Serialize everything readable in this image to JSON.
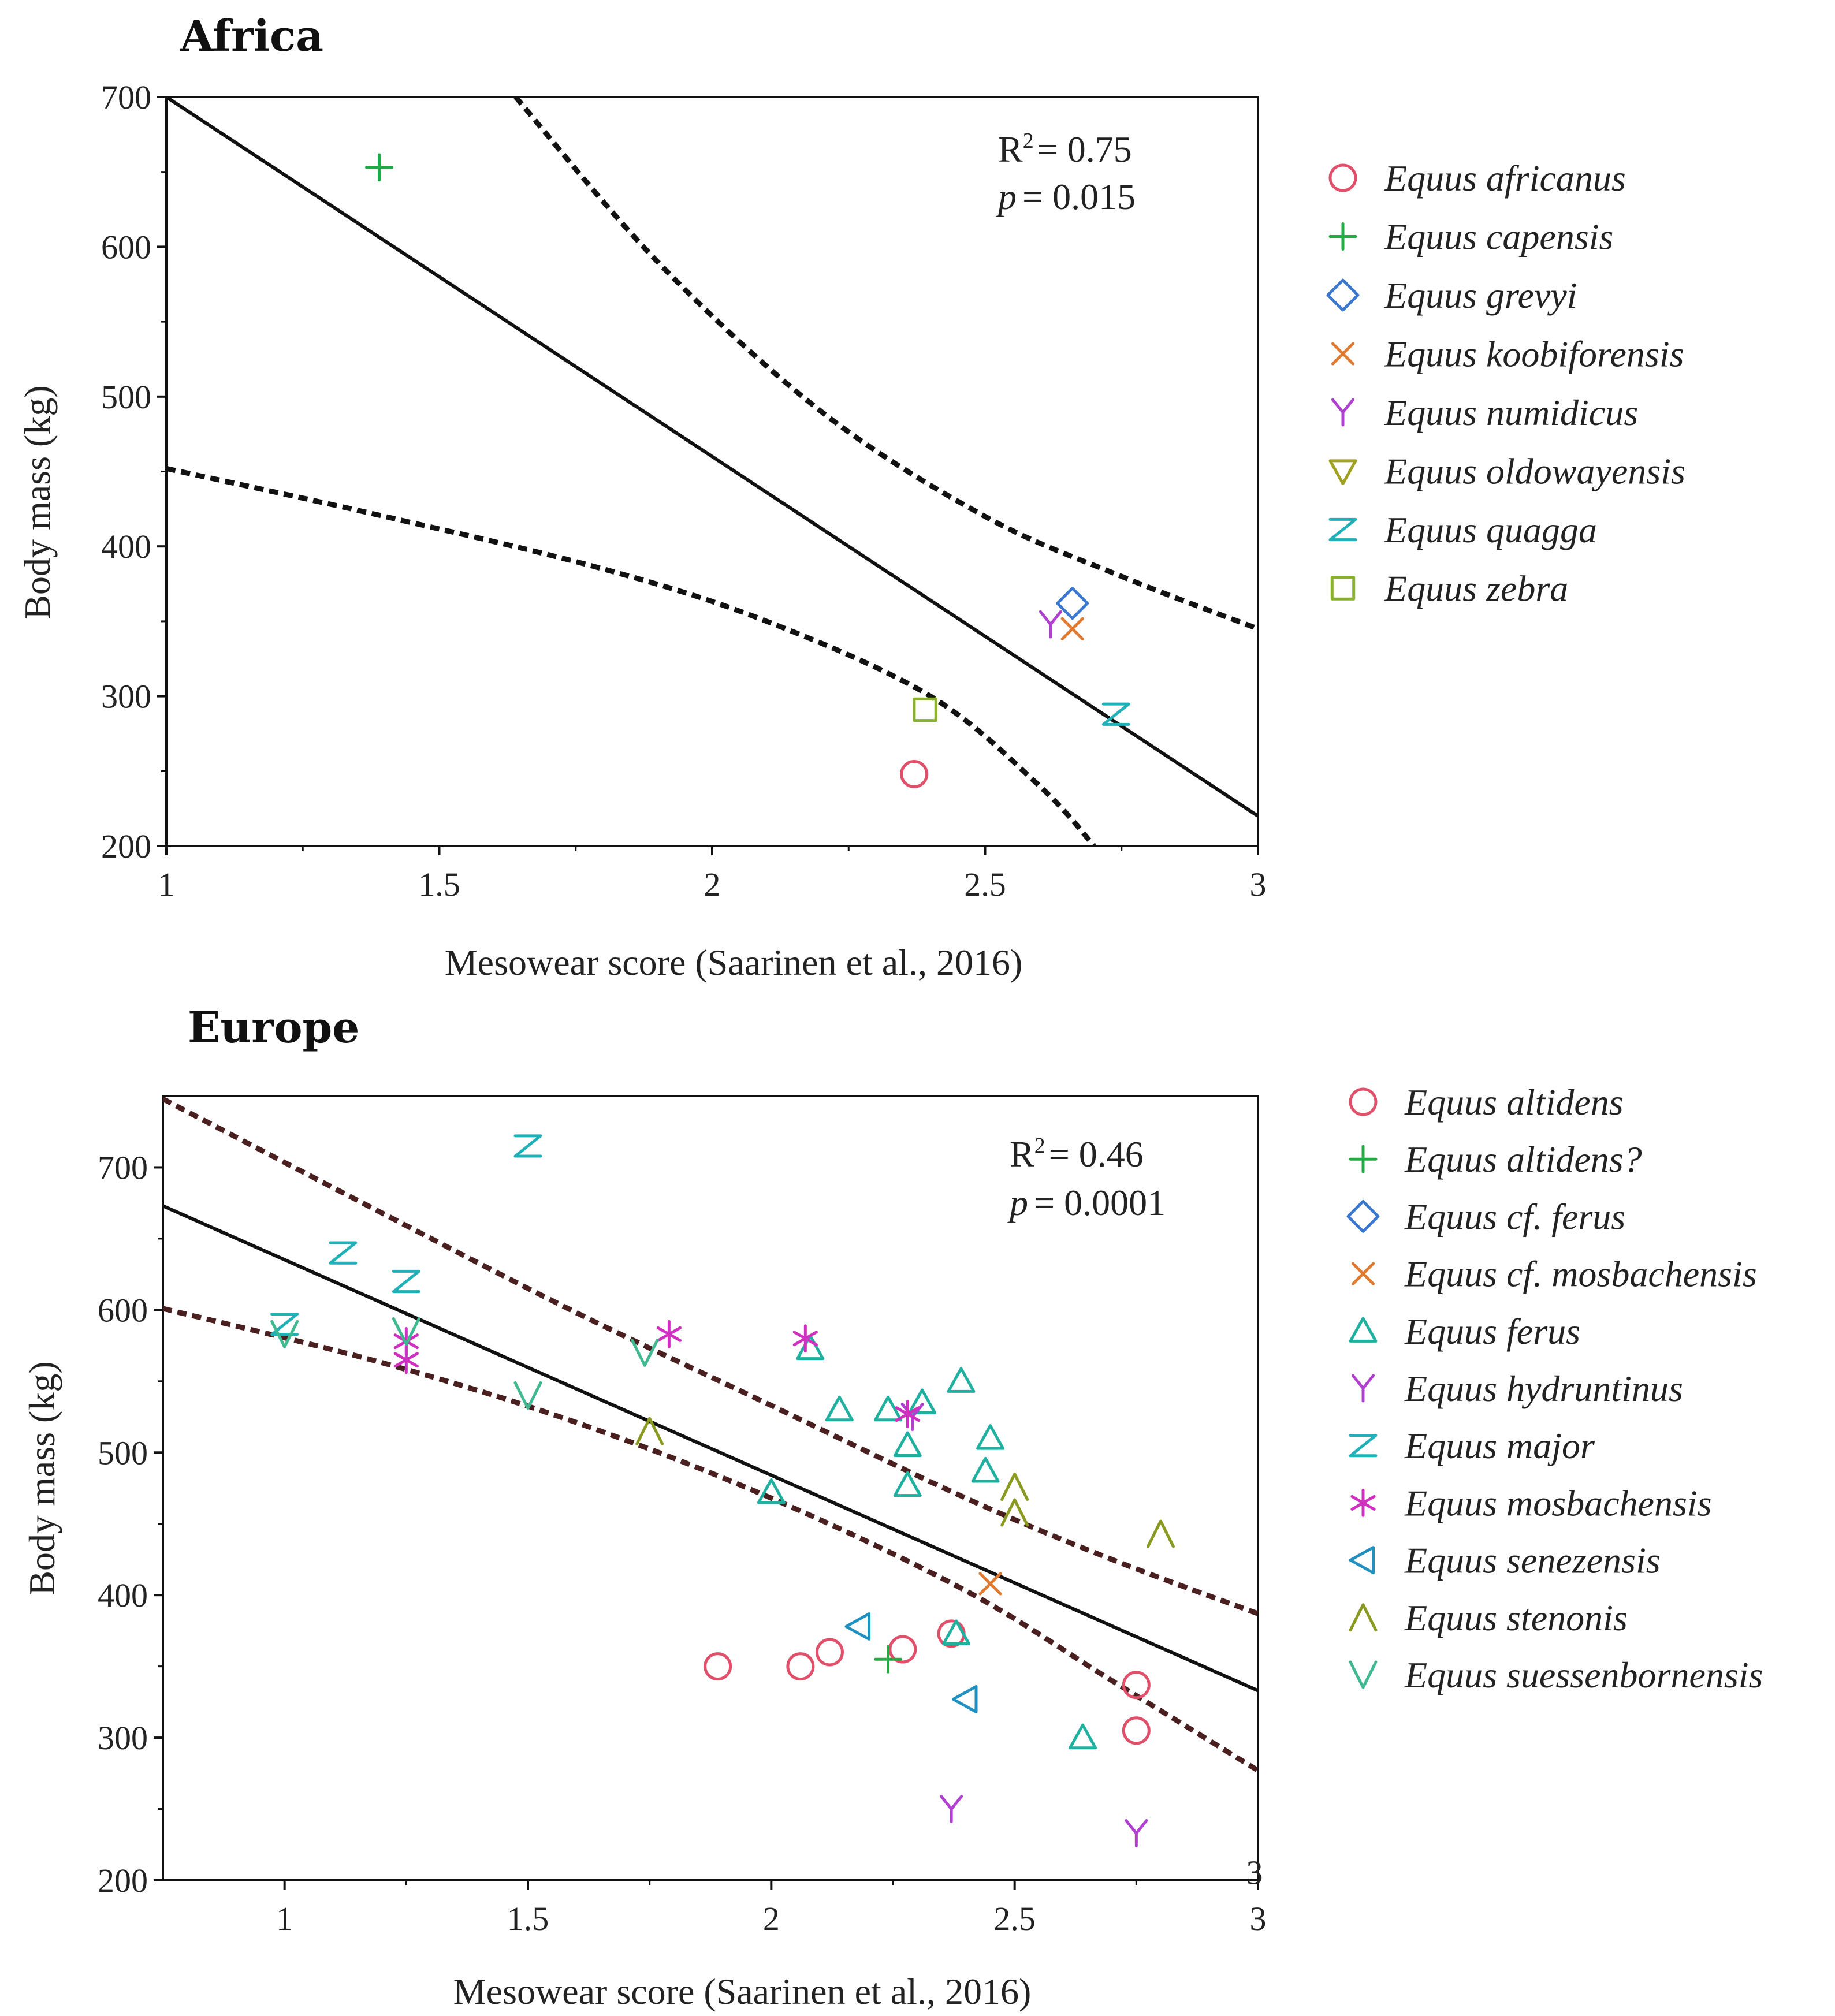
{
  "chart_data": [
    {
      "type": "scatter",
      "title": "Africa",
      "xlabel": "Mesowear score (Saarinen et al., 2016)",
      "ylabel": "Body mass (kg)",
      "xlim": [
        1,
        3
      ],
      "ylim": [
        200,
        700
      ],
      "xticks": [
        1,
        1.5,
        2,
        2.5,
        3
      ],
      "xtick_labels": [
        "1",
        "1.5",
        "2",
        "2.5",
        "3"
      ],
      "yticks": [
        200,
        300,
        400,
        500,
        600,
        700
      ],
      "ytick_labels": [
        "200",
        "300",
        "400",
        "500",
        "600",
        "700"
      ],
      "stats": {
        "r2_label": "R",
        "r2_sup": "2",
        "r2_value": "= 0.75",
        "p_label": "p",
        "p_value": "= 0.015"
      },
      "regression": {
        "x1": 1,
        "y1": 700,
        "x2": 3,
        "y2": 220
      },
      "ci_upper": [
        [
          1.64,
          700
        ],
        [
          1.9,
          590
        ],
        [
          2.2,
          490
        ],
        [
          2.5,
          420
        ],
        [
          2.75,
          380
        ],
        [
          3,
          345
        ]
      ],
      "ci_lower": [
        [
          1,
          452
        ],
        [
          1.4,
          420
        ],
        [
          1.8,
          385
        ],
        [
          2.1,
          350
        ],
        [
          2.4,
          300
        ],
        [
          2.6,
          240
        ],
        [
          2.7,
          200
        ]
      ],
      "series": [
        {
          "name": "Equus africanus",
          "marker": "circle",
          "color": "#e0506a",
          "points": [
            [
              2.37,
              248
            ]
          ]
        },
        {
          "name": "Equus capensis",
          "marker": "plus",
          "color": "#22aa44",
          "points": [
            [
              1.39,
              653
            ]
          ]
        },
        {
          "name": "Equus grevyi",
          "marker": "diamond",
          "color": "#3a78d0",
          "points": [
            [
              2.66,
              362
            ]
          ]
        },
        {
          "name": "Equus koobiforensis",
          "marker": "x",
          "color": "#e07a30",
          "points": [
            [
              2.66,
              345
            ]
          ]
        },
        {
          "name": "Equus numidicus",
          "marker": "y",
          "color": "#b040d0",
          "points": [
            [
              2.62,
              348
            ]
          ]
        },
        {
          "name": "Equus oldowayensis",
          "marker": "tri-down",
          "color": "#a0a020",
          "points": []
        },
        {
          "name": "Equus quagga",
          "marker": "z",
          "color": "#20b0b8",
          "points": [
            [
              2.74,
              288
            ]
          ]
        },
        {
          "name": "Equus zebra",
          "marker": "square",
          "color": "#8ab030",
          "points": [
            [
              2.39,
              291
            ]
          ]
        }
      ]
    },
    {
      "type": "scatter",
      "title": "Europe",
      "xlabel": "Mesowear score (Saarinen et al., 2016)",
      "ylabel": "Body mass (kg)",
      "xlim": [
        0.75,
        3
      ],
      "ylim": [
        200,
        750
      ],
      "xticks": [
        1,
        1.5,
        2,
        2.5,
        3
      ],
      "xtick_labels": [
        "1",
        "1.5",
        "2",
        "2.5",
        "3"
      ],
      "yticks": [
        200,
        300,
        400,
        500,
        600,
        700
      ],
      "ytick_labels": [
        "200",
        "300",
        "400",
        "500",
        "600",
        "700"
      ],
      "stats": {
        "r2_label": "R",
        "r2_sup": "2",
        "r2_value": "= 0.46",
        "p_label": "p",
        "p_value": "= 0.0001"
      },
      "regression": {
        "x1": 0.75,
        "y1": 673,
        "x2": 3,
        "y2": 333
      },
      "ci_upper": [
        [
          0.75,
          748
        ],
        [
          1.2,
          668
        ],
        [
          1.6,
          598
        ],
        [
          2.0,
          533
        ],
        [
          2.4,
          468
        ],
        [
          2.7,
          425
        ],
        [
          3,
          387
        ]
      ],
      "ci_lower": [
        [
          0.75,
          601
        ],
        [
          1.2,
          563
        ],
        [
          1.6,
          521
        ],
        [
          2.0,
          468
        ],
        [
          2.4,
          403
        ],
        [
          2.7,
          340
        ],
        [
          3,
          277
        ]
      ],
      "series": [
        {
          "name": "Equus altidens",
          "marker": "circle",
          "color": "#e0506a",
          "points": [
            [
              1.89,
              350
            ],
            [
              2.06,
              350
            ],
            [
              2.12,
              360
            ],
            [
              2.27,
              362
            ],
            [
              2.37,
              373
            ],
            [
              2.75,
              337
            ],
            [
              2.75,
              305
            ]
          ]
        },
        {
          "name": "Equus altidens?",
          "marker": "plus",
          "color": "#22aa44",
          "points": [
            [
              2.24,
              355
            ]
          ]
        },
        {
          "name": "Equus cf. ferus",
          "marker": "diamond",
          "color": "#3a78d0",
          "points": []
        },
        {
          "name": "Equus cf. mosbachensis",
          "marker": "x",
          "color": "#e07a30",
          "points": [
            [
              2.45,
              408
            ]
          ]
        },
        {
          "name": "Equus ferus",
          "marker": "tri-up",
          "color": "#20b0a0",
          "points": [
            [
              2.08,
              573
            ],
            [
              2.14,
              530
            ],
            [
              2.24,
              530
            ],
            [
              2.31,
              535
            ],
            [
              2.28,
              505
            ],
            [
              2.28,
              477
            ],
            [
              2.39,
              550
            ],
            [
              2.45,
              510
            ],
            [
              2.44,
              487
            ],
            [
              2.0,
              472
            ],
            [
              2.38,
              373
            ],
            [
              2.64,
              300
            ]
          ]
        },
        {
          "name": "Equus hydruntinus",
          "marker": "y",
          "color": "#b040d0",
          "points": [
            [
              2.29,
              525
            ],
            [
              2.37,
              250
            ],
            [
              2.75,
              233
            ]
          ]
        },
        {
          "name": "Equus major",
          "marker": "z",
          "color": "#20b0b8",
          "points": [
            [
              1.5,
              715
            ],
            [
              1.12,
              640
            ],
            [
              1.25,
              620
            ],
            [
              1.0,
              590
            ]
          ]
        },
        {
          "name": "Equus mosbachensis",
          "marker": "asterisk",
          "color": "#d030c0",
          "points": [
            [
              1.25,
              578
            ],
            [
              1.25,
              565
            ],
            [
              1.79,
              583
            ],
            [
              2.07,
              580
            ],
            [
              2.28,
              527
            ]
          ]
        },
        {
          "name": "Equus senezensis",
          "marker": "tri-left",
          "color": "#2090c0",
          "points": [
            [
              2.18,
              378
            ],
            [
              2.4,
              327
            ]
          ]
        },
        {
          "name": "Equus stenonis",
          "marker": "caret",
          "color": "#8a9a20",
          "points": [
            [
              1.75,
              515
            ],
            [
              2.5,
              476
            ],
            [
              2.5,
              458
            ],
            [
              2.8,
              443
            ]
          ]
        },
        {
          "name": "Equus suessenbornensis",
          "marker": "v",
          "color": "#40b890",
          "points": [
            [
              1.0,
              583
            ],
            [
              1.25,
              585
            ],
            [
              1.5,
              540
            ],
            [
              1.74,
              570
            ]
          ]
        }
      ],
      "stray_label": "3"
    }
  ]
}
